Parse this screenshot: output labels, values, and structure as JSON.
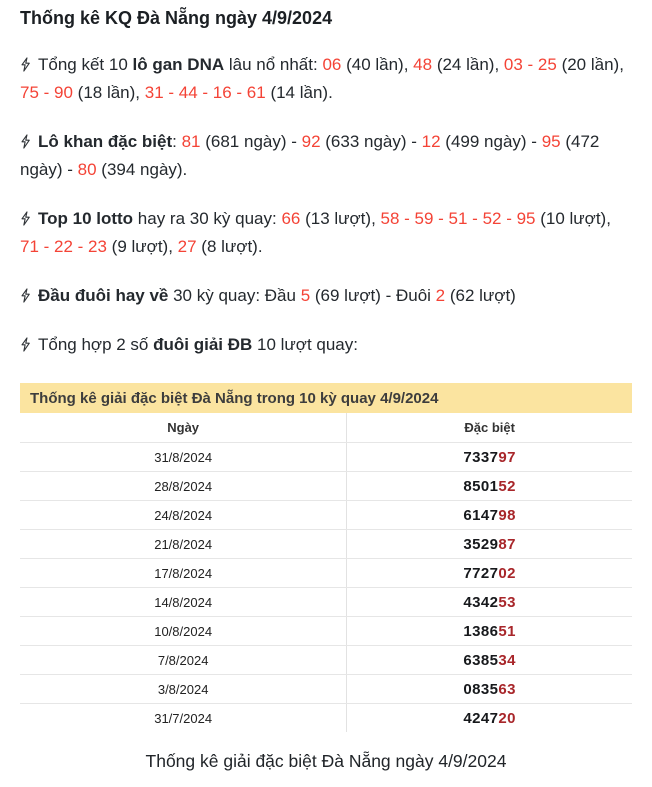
{
  "page": {
    "title": "Thống kê KQ Đà Nẵng ngày 4/9/2024"
  },
  "bullet_icon": "lightning-icon",
  "bullets": [
    {
      "segments": [
        {
          "text": "Tổng kết 10 ",
          "style": "normal"
        },
        {
          "text": "lô gan DNA",
          "style": "bold"
        },
        {
          "text": " lâu nổ nhất: ",
          "style": "normal"
        },
        {
          "text": "06",
          "style": "red"
        },
        {
          "text": " (40 lần), ",
          "style": "normal"
        },
        {
          "text": "48",
          "style": "red"
        },
        {
          "text": " (24 lần), ",
          "style": "normal"
        },
        {
          "text": "03 - 25",
          "style": "red"
        },
        {
          "text": " (20 lần), ",
          "style": "normal"
        },
        {
          "text": "75 - 90",
          "style": "red"
        },
        {
          "text": " (18 lần), ",
          "style": "normal"
        },
        {
          "text": "31 - 44 - 16 - 61",
          "style": "red"
        },
        {
          "text": " (14 lần).",
          "style": "normal"
        }
      ]
    },
    {
      "segments": [
        {
          "text": "Lô khan đặc biệt",
          "style": "bold"
        },
        {
          "text": ": ",
          "style": "normal"
        },
        {
          "text": "81",
          "style": "red"
        },
        {
          "text": " (681 ngày) - ",
          "style": "normal"
        },
        {
          "text": "92",
          "style": "red"
        },
        {
          "text": " (633 ngày) - ",
          "style": "normal"
        },
        {
          "text": "12",
          "style": "red"
        },
        {
          "text": " (499 ngày) - ",
          "style": "normal"
        },
        {
          "text": "95",
          "style": "red"
        },
        {
          "text": " (472 ngày) - ",
          "style": "normal"
        },
        {
          "text": "80",
          "style": "red"
        },
        {
          "text": " (394 ngày).",
          "style": "normal"
        }
      ]
    },
    {
      "segments": [
        {
          "text": "Top 10 lotto",
          "style": "bold"
        },
        {
          "text": " hay ra 30 kỳ quay: ",
          "style": "normal"
        },
        {
          "text": "66",
          "style": "red"
        },
        {
          "text": " (13 lượt), ",
          "style": "normal"
        },
        {
          "text": "58 - 59 - 51 - 52 - 95",
          "style": "red"
        },
        {
          "text": " (10 lượt), ",
          "style": "normal"
        },
        {
          "text": "71 - 22 - 23",
          "style": "red"
        },
        {
          "text": " (9 lượt), ",
          "style": "normal"
        },
        {
          "text": "27",
          "style": "red"
        },
        {
          "text": " (8 lượt).",
          "style": "normal"
        }
      ]
    },
    {
      "segments": [
        {
          "text": "Đầu đuôi hay về",
          "style": "bold"
        },
        {
          "text": " 30 kỳ quay: Đầu ",
          "style": "normal"
        },
        {
          "text": "5",
          "style": "red"
        },
        {
          "text": " (69 lượt) - Đuôi ",
          "style": "normal"
        },
        {
          "text": "2",
          "style": "red"
        },
        {
          "text": " (62 lượt)",
          "style": "normal"
        }
      ]
    },
    {
      "segments": [
        {
          "text": "Tổng hợp 2 số ",
          "style": "normal"
        },
        {
          "text": "đuôi giải ĐB",
          "style": "bold"
        },
        {
          "text": " 10 lượt quay:",
          "style": "normal"
        }
      ]
    }
  ],
  "table": {
    "caption": "Thống kê giải đặc biệt Đà Nẵng trong 10 kỳ quay 4/9/2024",
    "columns": [
      "Ngày",
      "Đặc biệt"
    ],
    "rows": [
      {
        "date": "31/8/2024",
        "number_black": "7337",
        "number_red": "97"
      },
      {
        "date": "28/8/2024",
        "number_black": "8501",
        "number_red": "52"
      },
      {
        "date": "24/8/2024",
        "number_black": "6147",
        "number_red": "98"
      },
      {
        "date": "21/8/2024",
        "number_black": "3529",
        "number_red": "87"
      },
      {
        "date": "17/8/2024",
        "number_black": "7727",
        "number_red": "02"
      },
      {
        "date": "14/8/2024",
        "number_black": "4342",
        "number_red": "53"
      },
      {
        "date": "10/8/2024",
        "number_black": "1386",
        "number_red": "51"
      },
      {
        "date": "7/8/2024",
        "number_black": "6385",
        "number_red": "34"
      },
      {
        "date": "3/8/2024",
        "number_black": "0835",
        "number_red": "63"
      },
      {
        "date": "31/7/2024",
        "number_black": "4247",
        "number_red": "20"
      }
    ]
  },
  "footer": {
    "caption": "Thống kê giải đặc biệt Đà Nẵng ngày 4/9/2024"
  },
  "colors": {
    "accent_red": "#f44336",
    "table_red": "#a8262a",
    "caption_bg": "#fbe4a0",
    "text": "#24292e"
  }
}
